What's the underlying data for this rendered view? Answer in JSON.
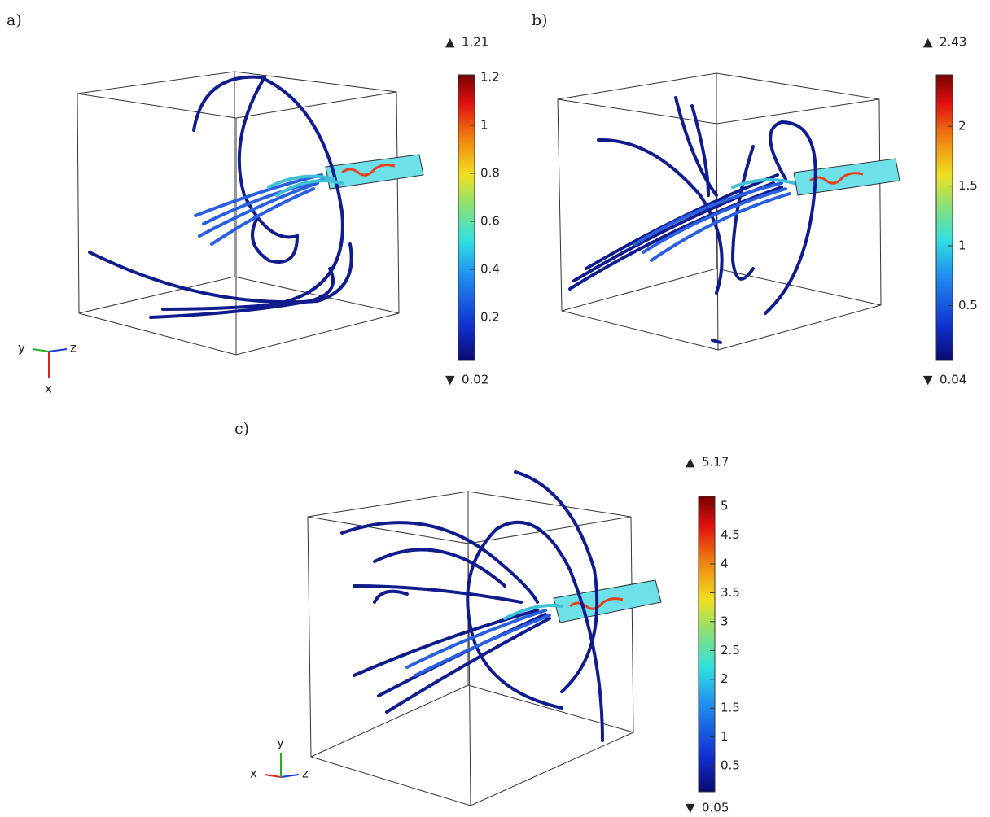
{
  "panels": [
    {
      "label": "a)",
      "max": 1.21,
      "min": 0.02,
      "ticks": [
        0.2,
        0.4,
        0.6,
        0.8,
        1,
        1.2
      ],
      "triad": {
        "up": "x",
        "left": "y",
        "right": "z"
      }
    },
    {
      "label": "b)",
      "max": 2.43,
      "min": 0.04,
      "ticks": [
        0.5,
        1,
        1.5,
        2
      ]
    },
    {
      "label": "c)",
      "max": 5.17,
      "min": 0.05,
      "ticks": [
        0.5,
        1,
        1.5,
        2,
        2.5,
        3,
        3.5,
        4,
        4.5,
        5
      ],
      "triad": {
        "up": "y",
        "left": "x",
        "right": "z"
      }
    }
  ]
}
